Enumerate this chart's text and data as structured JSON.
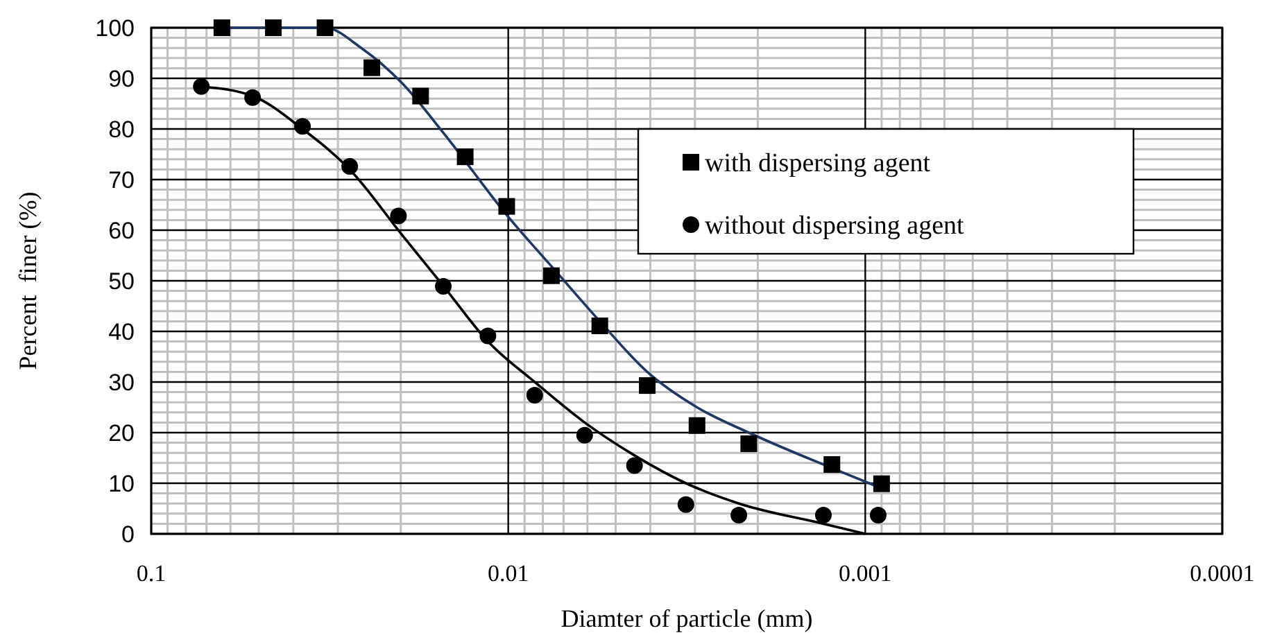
{
  "chart_data": {
    "type": "scatter",
    "xlabel": "Diamter of particle (mm)",
    "ylabel": "Percent  finer (%)",
    "log": "x",
    "xlim": [
      0.1,
      0.0001
    ],
    "xticks": [
      0.1,
      0.01,
      0.001,
      0.0001
    ],
    "ylim": [
      0,
      100
    ],
    "yticks": [
      0,
      10,
      20,
      30,
      40,
      50,
      60,
      70,
      80,
      90,
      100
    ],
    "grid": true,
    "legend": "right",
    "series": [
      {
        "name": "with dispersing agent",
        "marker": "square",
        "color": "#000000",
        "x": [
          0.0634,
          0.0455,
          0.0326,
          0.0241,
          0.0176,
          0.0132,
          0.0101,
          0.00757,
          0.00554,
          0.00408,
          0.00296,
          0.00212,
          0.00124,
          0.0009
        ],
        "values": [
          100,
          100,
          100,
          92.1,
          86.5,
          74.5,
          64.7,
          51,
          41.1,
          29.3,
          21.4,
          17.8,
          13.7,
          9.9
        ]
      },
      {
        "name": "without dispersing agent",
        "marker": "circle",
        "color": "#000000",
        "x": [
          0.0724,
          0.052,
          0.0377,
          0.0278,
          0.0203,
          0.0152,
          0.0114,
          0.00843,
          0.00611,
          0.00443,
          0.00318,
          0.00226,
          0.00131,
          0.00092
        ],
        "values": [
          88.4,
          86.2,
          80.5,
          72.6,
          62.8,
          48.9,
          39.1,
          27.4,
          19.5,
          13.5,
          5.8,
          3.7,
          3.7,
          3.7
        ]
      },
      {
        "type": "line",
        "color": "#1f3864",
        "x": [
          0.0634,
          0.0326,
          0.0258,
          0.0198,
          0.0151,
          0.0101,
          0.00738,
          0.00554,
          0.00408,
          0.00296,
          0.00212,
          0.00124,
          0.0009
        ],
        "values": [
          100,
          100,
          96,
          89,
          79,
          63,
          52,
          42,
          32,
          25,
          20,
          13,
          9
        ]
      },
      {
        "type": "line",
        "color": "#000000",
        "x": [
          0.0724,
          0.052,
          0.0377,
          0.0278,
          0.0198,
          0.0152,
          0.0114,
          0.00843,
          0.00611,
          0.00443,
          0.00318,
          0.00226,
          0.00131,
          0.001
        ],
        "values": [
          88.4,
          86.5,
          80,
          72,
          59,
          49,
          38,
          30,
          22,
          15.5,
          10,
          6,
          2,
          0
        ]
      }
    ]
  }
}
